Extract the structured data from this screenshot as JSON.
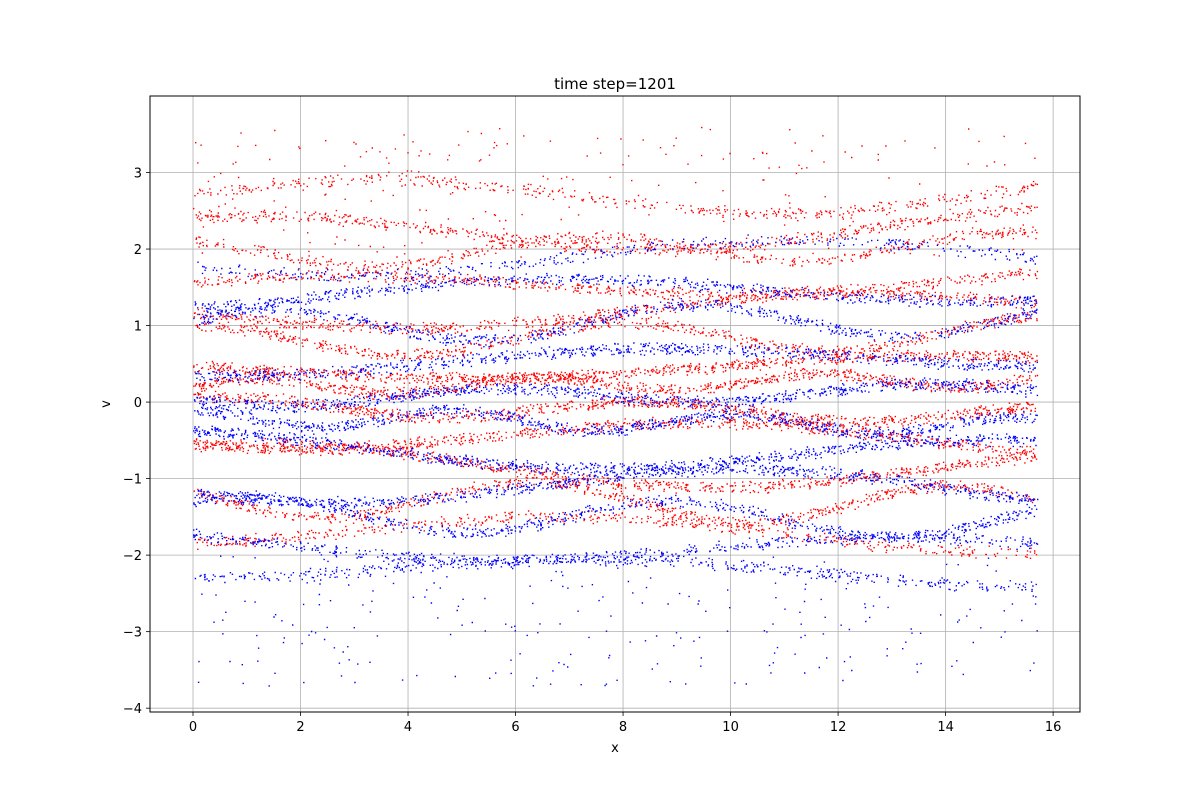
{
  "chart_data": {
    "type": "scatter",
    "title": "time step=1201",
    "xlabel": "x",
    "ylabel": "v",
    "xlim": [
      -0.8,
      16.5
    ],
    "ylim": [
      -4.05,
      4.0
    ],
    "xticks": [
      0,
      2,
      4,
      6,
      8,
      10,
      12,
      14,
      16
    ],
    "yticks": [
      -4,
      -3,
      -2,
      -1,
      0,
      1,
      2,
      3
    ],
    "grid": true,
    "legend": "none",
    "x_domain": [
      0,
      15.7
    ],
    "series": [
      {
        "color": "#ff0000",
        "filaments": [
          {
            "v0": 2.7,
            "amp": 0.25,
            "k": 1,
            "phase": 0.3,
            "n": 420
          },
          {
            "v0": 2.25,
            "amp": 0.25,
            "k": 1,
            "phase": 1.2,
            "n": 600
          },
          {
            "v0": 2.0,
            "amp": 0.18,
            "k": 2,
            "phase": 2.0,
            "n": 500
          },
          {
            "v0": 1.55,
            "amp": 0.15,
            "k": 1,
            "phase": 0.6,
            "n": 600
          },
          {
            "v0": 1.2,
            "amp": 0.2,
            "k": 1,
            "phase": 3.0,
            "n": 700
          },
          {
            "v0": 0.85,
            "amp": 0.2,
            "k": 2,
            "phase": 1.5,
            "n": 700
          },
          {
            "v0": 0.45,
            "amp": 0.12,
            "k": 1,
            "phase": 2.4,
            "n": 900
          },
          {
            "v0": 0.25,
            "amp": 0.1,
            "k": 3,
            "phase": 0.2,
            "n": 900
          },
          {
            "v0": -0.1,
            "amp": 0.12,
            "k": 2,
            "phase": 1.1,
            "n": 900
          },
          {
            "v0": -0.45,
            "amp": 0.2,
            "k": 1,
            "phase": 4.0,
            "n": 800
          },
          {
            "v0": -0.85,
            "amp": 0.25,
            "k": 1,
            "phase": 0.9,
            "n": 800
          },
          {
            "v0": -1.3,
            "amp": 0.25,
            "k": 2,
            "phase": 2.8,
            "n": 700
          },
          {
            "v0": -1.7,
            "amp": 0.2,
            "k": 1,
            "phase": 5.0,
            "n": 500
          }
        ],
        "sparse": {
          "vmin": 1.9,
          "vmax": 3.6,
          "n": 260
        }
      },
      {
        "color": "#0000ff",
        "filaments": [
          {
            "v0": 1.9,
            "amp": 0.2,
            "k": 1,
            "phase": 3.5,
            "n": 400
          },
          {
            "v0": 1.45,
            "amp": 0.18,
            "k": 1,
            "phase": 5.2,
            "n": 700
          },
          {
            "v0": 1.05,
            "amp": 0.22,
            "k": 2,
            "phase": 0.4,
            "n": 700
          },
          {
            "v0": 0.55,
            "amp": 0.15,
            "k": 1,
            "phase": 4.4,
            "n": 800
          },
          {
            "v0": 0.1,
            "amp": 0.1,
            "k": 2,
            "phase": 3.3,
            "n": 900
          },
          {
            "v0": -0.25,
            "amp": 0.12,
            "k": 3,
            "phase": 2.0,
            "n": 900
          },
          {
            "v0": -0.65,
            "amp": 0.22,
            "k": 1,
            "phase": 1.8,
            "n": 900
          },
          {
            "v0": -1.1,
            "amp": 0.25,
            "k": 1,
            "phase": 3.7,
            "n": 800
          },
          {
            "v0": -1.5,
            "amp": 0.22,
            "k": 2,
            "phase": 0.7,
            "n": 700
          },
          {
            "v0": -1.9,
            "amp": 0.18,
            "k": 1,
            "phase": 2.5,
            "n": 600
          },
          {
            "v0": -2.2,
            "amp": 0.15,
            "k": 1,
            "phase": 4.8,
            "n": 500
          }
        ],
        "sparse": {
          "vmin": -3.7,
          "vmax": -2.0,
          "n": 260
        }
      }
    ]
  }
}
